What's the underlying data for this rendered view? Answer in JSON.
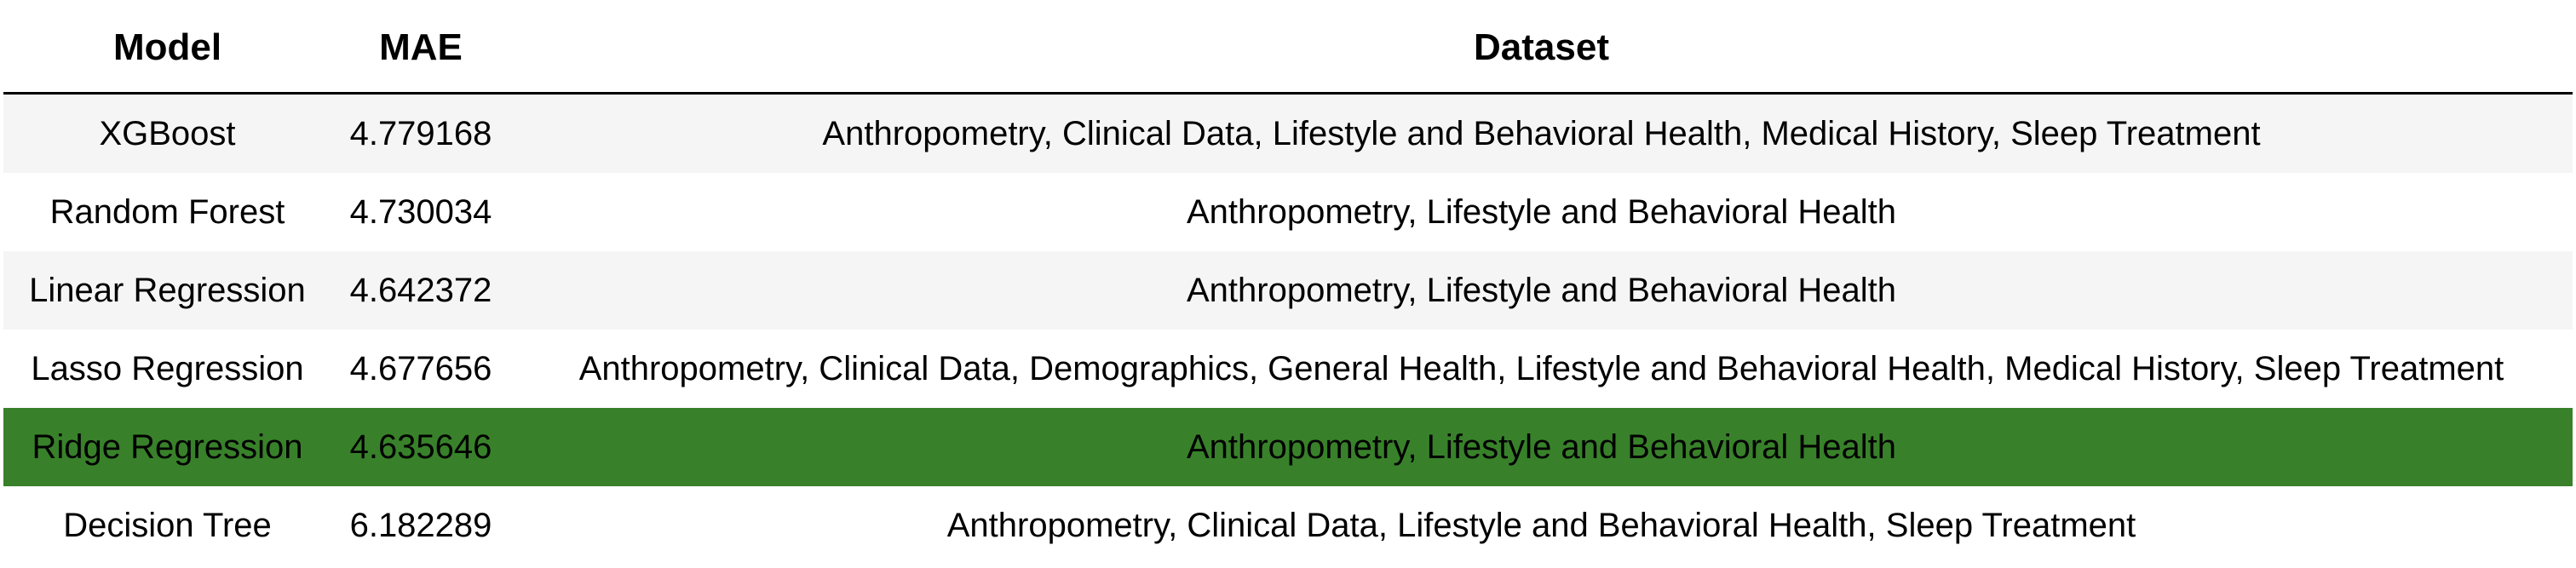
{
  "chart_data": {
    "type": "table",
    "columns": [
      "Model",
      "MAE",
      "Dataset"
    ],
    "rows": [
      {
        "model": "XGBoost",
        "mae": "4.779168",
        "dataset": "Anthropometry, Clinical Data, Lifestyle and Behavioral Health, Medical History, Sleep Treatment"
      },
      {
        "model": "Random Forest",
        "mae": "4.730034",
        "dataset": "Anthropometry, Lifestyle and Behavioral Health"
      },
      {
        "model": "Linear Regression",
        "mae": "4.642372",
        "dataset": "Anthropometry, Lifestyle and Behavioral Health"
      },
      {
        "model": "Lasso Regression",
        "mae": "4.677656",
        "dataset": "Anthropometry, Clinical Data, Demographics, General Health, Lifestyle and Behavioral Health, Medical History, Sleep Treatment"
      },
      {
        "model": "Ridge Regression",
        "mae": "4.635646",
        "dataset": "Anthropometry, Lifestyle and Behavioral Health",
        "highlighted": true
      },
      {
        "model": "Decision Tree",
        "mae": "6.182289",
        "dataset": "Anthropometry, Clinical Data, Lifestyle and Behavioral Health, Sleep Treatment"
      }
    ],
    "highlight_color": "#38812a",
    "stripe_color": "#f5f5f5"
  }
}
